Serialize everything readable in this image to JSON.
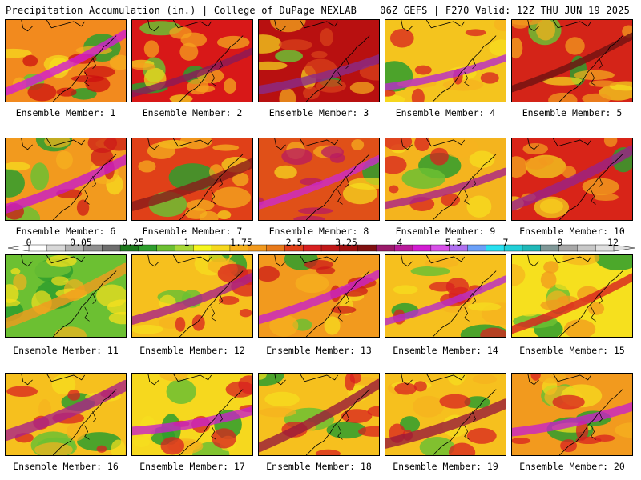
{
  "header": {
    "title_left": "Precipitation Accumulation (in.) | College of DuPage NEXLAB",
    "title_right": "06Z GEFS | F270 Valid: 12Z THU JUN 19 2025"
  },
  "panels": [
    {
      "label": "Ensemble Member: 1",
      "base": "#f28a1e",
      "accent": "#cc1010",
      "blob": "#d21cd2",
      "green": 0.25
    },
    {
      "label": "Ensemble Member: 2",
      "base": "#d81818",
      "accent": "#f6a21e",
      "blob": "#8a1a5a",
      "green": 0.35
    },
    {
      "label": "Ensemble Member: 3",
      "base": "#b81010",
      "accent": "#d8401a",
      "blob": "#8a2a8a",
      "green": 0.15
    },
    {
      "label": "Ensemble Member: 4",
      "base": "#f4c41e",
      "accent": "#d82020",
      "blob": "#b82acc",
      "green": 0.1
    },
    {
      "label": "Ensemble Member: 5",
      "base": "#d42418",
      "accent": "#f29a1e",
      "blob": "#6e1212",
      "green": 0.15
    },
    {
      "label": "Ensemble Member: 6",
      "base": "#f29a1e",
      "accent": "#cc1818",
      "blob": "#c81ac8",
      "green": 0.35
    },
    {
      "label": "Ensemble Member: 7",
      "base": "#e04018",
      "accent": "#f6b21e",
      "blob": "#8a1a1a",
      "green": 0.2
    },
    {
      "label": "Ensemble Member: 8",
      "base": "#e05018",
      "accent": "#b81a60",
      "blob": "#cc2acc",
      "green": 0.1
    },
    {
      "label": "Ensemble Member: 9",
      "base": "#f4b41e",
      "accent": "#d82020",
      "blob": "#aa2288",
      "green": 0.2
    },
    {
      "label": "Ensemble Member: 10",
      "base": "#d82418",
      "accent": "#f29a1e",
      "blob": "#9a2288",
      "green": 0.1
    },
    {
      "label": "Ensemble Member: 11",
      "base": "#6cc032",
      "accent": "#f6e01e",
      "blob": "#f29a1e",
      "green": 0.6
    },
    {
      "label": "Ensemble Member: 12",
      "base": "#f6c01e",
      "accent": "#d82020",
      "blob": "#aa2288",
      "green": 0.35
    },
    {
      "label": "Ensemble Member: 13",
      "base": "#f29a1e",
      "accent": "#cc1818",
      "blob": "#c822c8",
      "green": 0.15
    },
    {
      "label": "Ensemble Member: 14",
      "base": "#f6c01e",
      "accent": "#d82020",
      "blob": "#b82acc",
      "green": 0.3
    },
    {
      "label": "Ensemble Member: 15",
      "base": "#f6e01e",
      "accent": "#f29a1e",
      "blob": "#d82020",
      "green": 0.4
    },
    {
      "label": "Ensemble Member: 16",
      "base": "#f6c01e",
      "accent": "#d82020",
      "blob": "#aa2288",
      "green": 0.35
    },
    {
      "label": "Ensemble Member: 17",
      "base": "#f6d81e",
      "accent": "#d82020",
      "blob": "#c822c8",
      "green": 0.45
    },
    {
      "label": "Ensemble Member: 18",
      "base": "#f6c01e",
      "accent": "#d82020",
      "blob": "#9a1a3a",
      "green": 0.3
    },
    {
      "label": "Ensemble Member: 19",
      "base": "#f6c01e",
      "accent": "#d82020",
      "blob": "#9a1a3a",
      "green": 0.3
    },
    {
      "label": "Ensemble Member: 20",
      "base": "#f29a1e",
      "accent": "#d82020",
      "blob": "#c822c8",
      "green": 0.35
    }
  ],
  "legend": {
    "tick_labels": [
      "0",
      "0.05",
      "0.25",
      "1",
      "1.75",
      "2.5",
      "3.25",
      "4",
      "5.5",
      "7",
      "9",
      "12"
    ],
    "colors": [
      "#ffffff",
      "#d8d8d8",
      "#b4b4b4",
      "#909090",
      "#6e6e6e",
      "#1e7a1e",
      "#2e9e2e",
      "#6cc032",
      "#a8d838",
      "#f6f61e",
      "#f6d81e",
      "#f6b21e",
      "#f29a1e",
      "#e87a1a",
      "#e04018",
      "#d82020",
      "#c01818",
      "#a01010",
      "#801010",
      "#9a1a6a",
      "#b81a9a",
      "#d21cd2",
      "#d850e8",
      "#b070f0",
      "#6aa0f8",
      "#28e0f0",
      "#22d0d8",
      "#20b8b8",
      "#809898",
      "#a8a8a8",
      "#c8c8c8",
      "#e0e0e0"
    ]
  }
}
